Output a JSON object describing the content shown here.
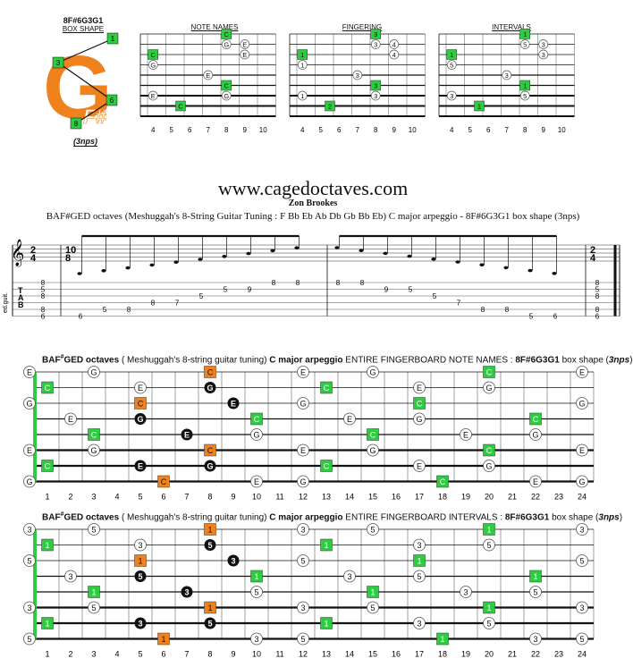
{
  "box": {
    "code": "8F#6G3G1",
    "label": "BOX SHAPE",
    "letters": "G",
    "sub_letters": "F#",
    "nps": "(3nps)"
  },
  "mini_diagrams": [
    {
      "title": "NOTE NAMES"
    },
    {
      "title": "FINGERING"
    },
    {
      "title": "INTERVALS"
    }
  ],
  "mini_fret_numbers": [
    "4",
    "5",
    "6",
    "7",
    "8",
    "9",
    "10"
  ],
  "site": "www.cagedoctaves.com",
  "author": "Zon Brookes",
  "subtitle": "BAF#GED octaves (Meshuggah's 8-String Guitar Tuning : F Bb Eb Ab Db Gb Bb Eb) C major arpeggio - 8F#6G3G1 box shape  (3nps)",
  "tab": {
    "instrument": "ed.guit.",
    "time_top": "2",
    "time_bottom": "4",
    "mid_time_top": "10",
    "mid_time_bottom": "8",
    "asc": [
      "6",
      "5",
      "8",
      "8",
      "7",
      "5",
      "5",
      "9",
      "8",
      "8"
    ],
    "desc": [
      "8",
      "8",
      "9",
      "5",
      "5",
      "7",
      "8",
      "8",
      "5",
      "6"
    ],
    "open_left": [
      "8",
      "5",
      "8",
      "8",
      "6"
    ],
    "open_right": [
      "8",
      "5",
      "8",
      "8",
      "6"
    ]
  },
  "fb1": {
    "title_parts": [
      "BAF",
      "#",
      "GED octaves",
      " ( Meshuggah's 8-string guitar tuning) ",
      "C major arpeggio",
      " ENTIRE FINGERBOARD NOTE NAMES : ",
      "8F#6G3G1",
      " box shape (",
      "3nps",
      ")"
    ]
  },
  "fb2": {
    "title_parts": [
      "BAF",
      "#",
      "GED octaves",
      " ( Meshuggah's 8-string guitar tuning) ",
      "C major arpeggio",
      " ENTIRE FINGERBOARD INTERVALS : ",
      "8F#6G3G1",
      " box shape (",
      "3nps",
      ")"
    ]
  },
  "fret_numbers": [
    "1",
    "2",
    "3",
    "4",
    "5",
    "6",
    "7",
    "8",
    "9",
    "10",
    "11",
    "12",
    "13",
    "14",
    "15",
    "16",
    "17",
    "18",
    "19",
    "20",
    "21",
    "22",
    "23",
    "24"
  ],
  "colors": {
    "green": "#2ecc40",
    "orange": "#f0821e",
    "black": "#111111",
    "white": "#ffffff"
  }
}
